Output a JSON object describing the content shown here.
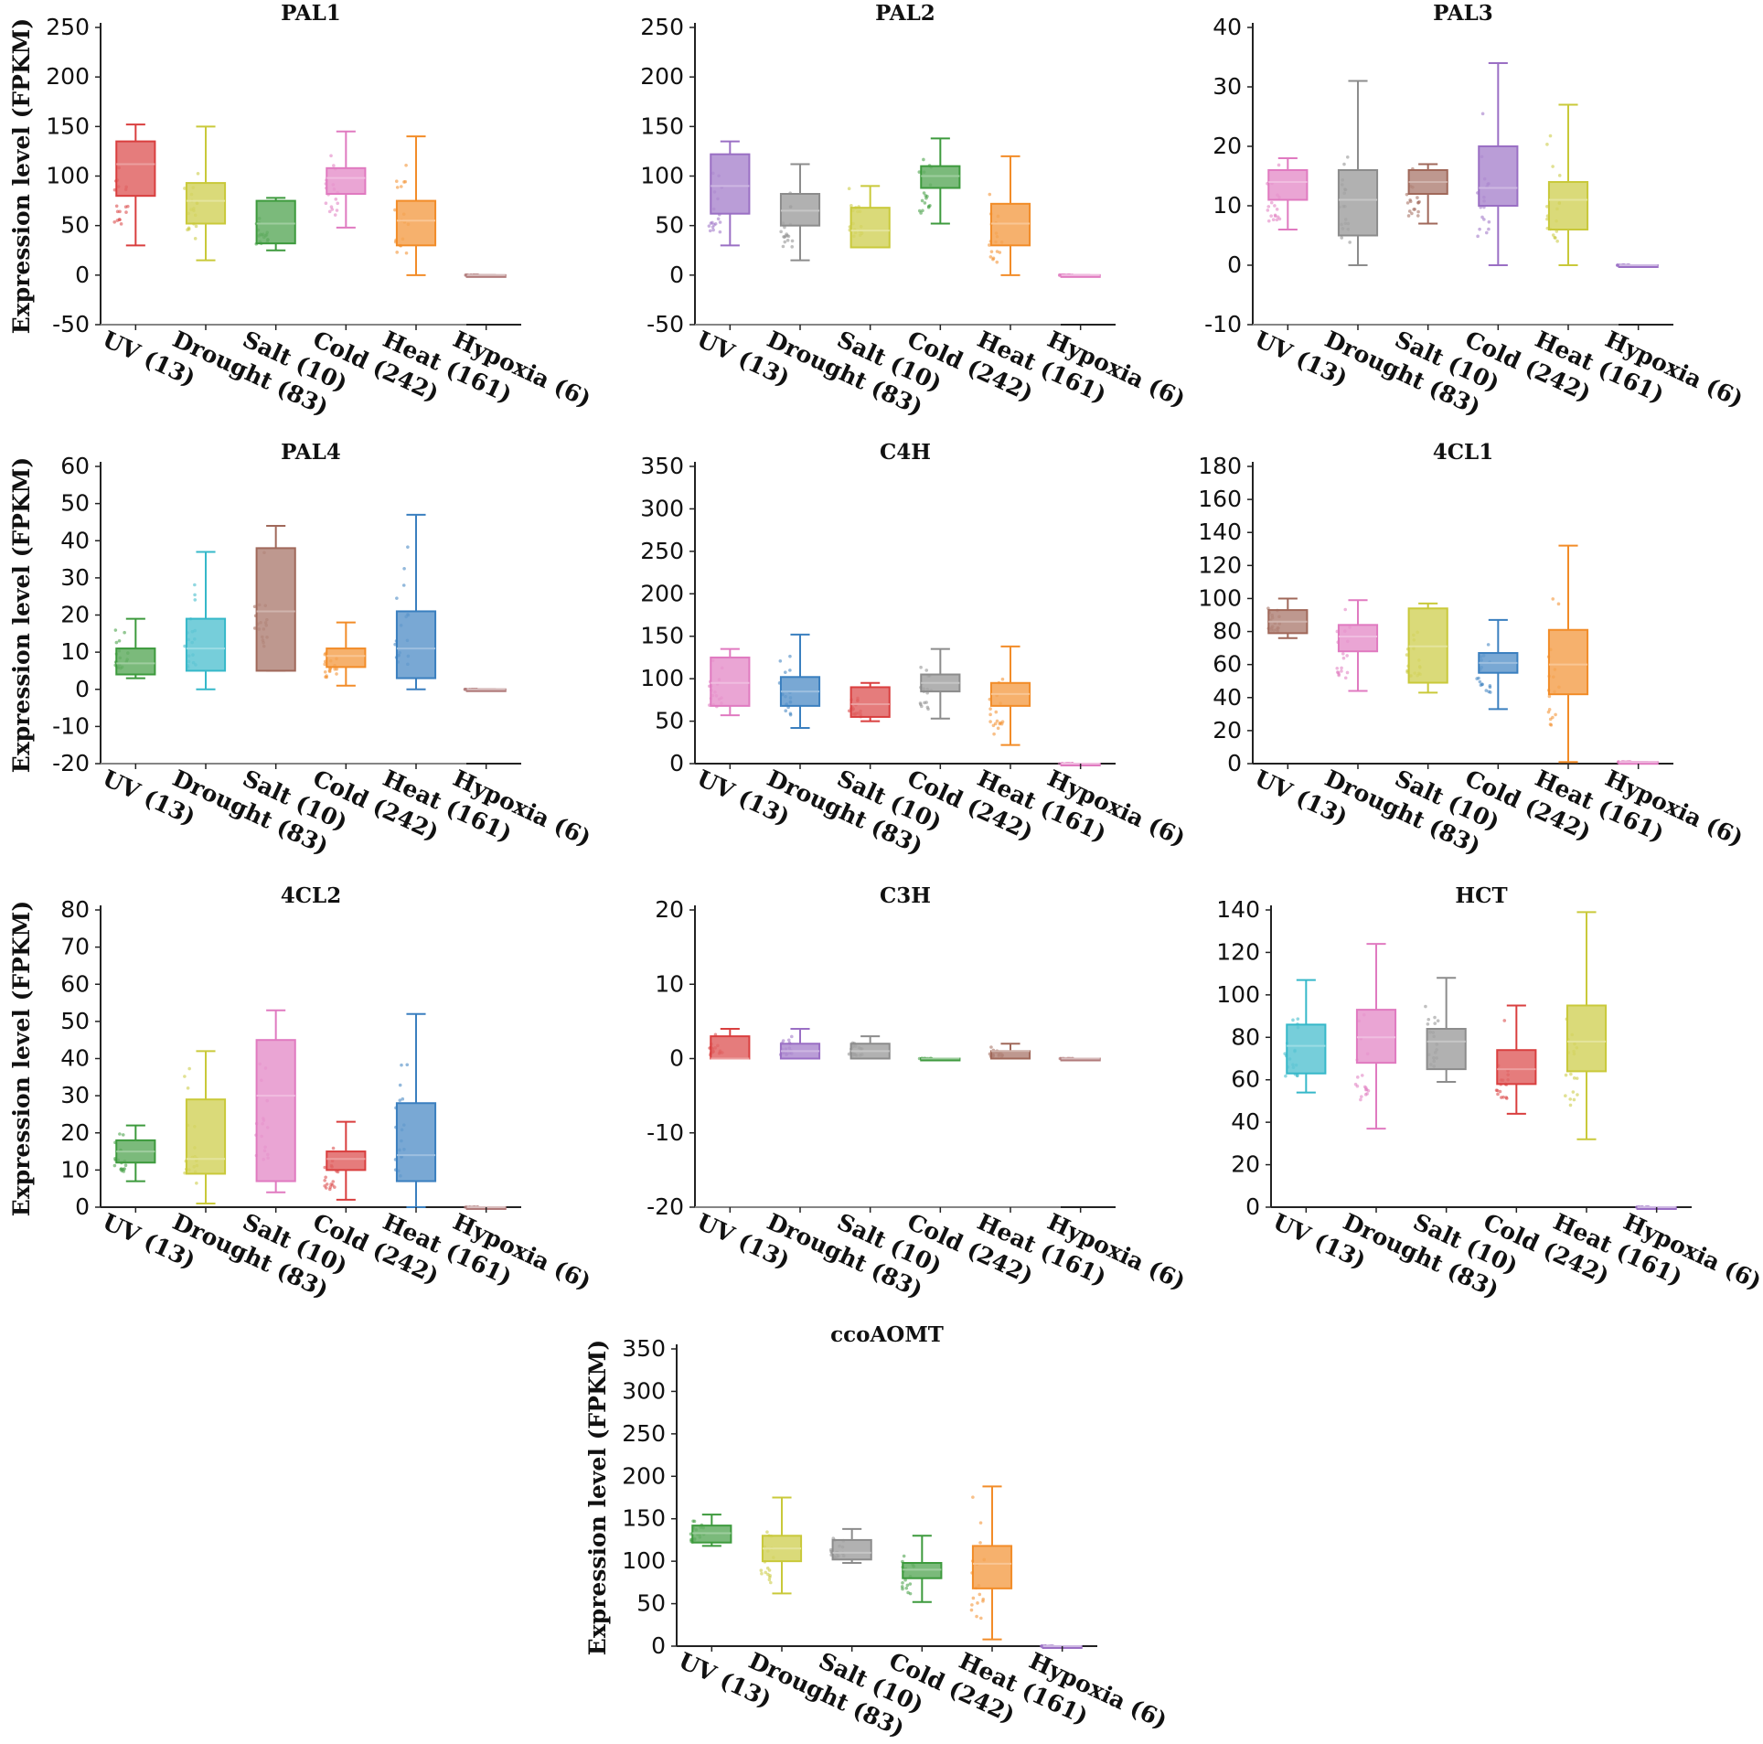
{
  "figure": {
    "y_axis_label": "Expression level (FPKM)",
    "conditions": [
      "UV (13)",
      "Drought (83)",
      "Salt (10)",
      "Cold (242)",
      "Heat (161)",
      "Hypoxia (6)"
    ]
  },
  "chart_data": [
    {
      "type": "box",
      "title": "PAL1",
      "ylabel": "Expression level (FPKM)",
      "ylim": [
        -50,
        250
      ],
      "yticks": [
        -50,
        0,
        50,
        100,
        150,
        200,
        250
      ],
      "categories": [
        "UV (13)",
        "Drought (83)",
        "Salt (10)",
        "Cold (242)",
        "Heat (161)",
        "Hypoxia (6)"
      ],
      "colors": [
        "#d93f3f",
        "#c9c93a",
        "#3d9a3d",
        "#e07ac0",
        "#f28c28",
        "#b07a7a"
      ],
      "boxes": [
        {
          "min": 30,
          "q1": 80,
          "median": 112,
          "q3": 135,
          "max": 152
        },
        {
          "min": 15,
          "q1": 52,
          "median": 75,
          "q3": 93,
          "max": 150
        },
        {
          "min": 25,
          "q1": 32,
          "median": 52,
          "q3": 75,
          "max": 78
        },
        {
          "min": 48,
          "q1": 82,
          "median": 98,
          "q3": 108,
          "max": 145
        },
        {
          "min": 0,
          "q1": 30,
          "median": 55,
          "q3": 75,
          "max": 140
        },
        {
          "min": 0,
          "q1": 0,
          "median": 0,
          "q3": 0,
          "max": 0
        }
      ]
    },
    {
      "type": "box",
      "title": "PAL2",
      "ylabel": "",
      "ylim": [
        -50,
        250
      ],
      "yticks": [
        -50,
        0,
        50,
        100,
        150,
        200,
        250
      ],
      "categories": [
        "UV (13)",
        "Drought (83)",
        "Salt (10)",
        "Cold (242)",
        "Heat (161)",
        "Hypoxia (6)"
      ],
      "colors": [
        "#9a6fc4",
        "#8c8c8c",
        "#c9c93a",
        "#3d9a3d",
        "#f28c28",
        "#e07ac0"
      ],
      "boxes": [
        {
          "min": 30,
          "q1": 62,
          "median": 90,
          "q3": 122,
          "max": 135
        },
        {
          "min": 15,
          "q1": 50,
          "median": 65,
          "q3": 82,
          "max": 112
        },
        {
          "min": 28,
          "q1": 28,
          "median": 45,
          "q3": 68,
          "max": 90
        },
        {
          "min": 52,
          "q1": 88,
          "median": 100,
          "q3": 110,
          "max": 138
        },
        {
          "min": 0,
          "q1": 30,
          "median": 52,
          "q3": 72,
          "max": 120
        },
        {
          "min": 0,
          "q1": 0,
          "median": 0,
          "q3": 0,
          "max": 0
        }
      ]
    },
    {
      "type": "box",
      "title": "PAL3",
      "ylabel": "",
      "ylim": [
        -10,
        40
      ],
      "yticks": [
        -10,
        0,
        10,
        20,
        30,
        40
      ],
      "categories": [
        "UV (13)",
        "Drought (83)",
        "Salt (10)",
        "Cold (242)",
        "Heat (161)",
        "Hypoxia (6)"
      ],
      "colors": [
        "#e07ac0",
        "#8c8c8c",
        "#a0685a",
        "#9a6fc4",
        "#c9c93a",
        "#9a6fc4"
      ],
      "boxes": [
        {
          "min": 6,
          "q1": 11,
          "median": 14,
          "q3": 16,
          "max": 18
        },
        {
          "min": 0,
          "q1": 5,
          "median": 11,
          "q3": 16,
          "max": 31
        },
        {
          "min": 7,
          "q1": 12,
          "median": 14,
          "q3": 16,
          "max": 17
        },
        {
          "min": 0,
          "q1": 10,
          "median": 13,
          "q3": 20,
          "max": 34
        },
        {
          "min": 0,
          "q1": 6,
          "median": 11,
          "q3": 14,
          "max": 27
        },
        {
          "min": 0,
          "q1": 0,
          "median": 0,
          "q3": 0,
          "max": 0
        }
      ]
    },
    {
      "type": "box",
      "title": "PAL4",
      "ylabel": "Expression level (FPKM)",
      "ylim": [
        -20,
        60
      ],
      "yticks": [
        -20,
        -10,
        0,
        10,
        20,
        30,
        40,
        50,
        60
      ],
      "categories": [
        "UV (13)",
        "Drought (83)",
        "Salt (10)",
        "Cold (242)",
        "Heat (161)",
        "Hypoxia (6)"
      ],
      "colors": [
        "#3d9a3d",
        "#36b8c9",
        "#a0685a",
        "#f28c28",
        "#3a7fbf",
        "#b07a7a"
      ],
      "boxes": [
        {
          "min": 3,
          "q1": 4,
          "median": 7,
          "q3": 11,
          "max": 19
        },
        {
          "min": 0,
          "q1": 5,
          "median": 11,
          "q3": 19,
          "max": 37
        },
        {
          "min": 5,
          "q1": 5,
          "median": 21,
          "q3": 38,
          "max": 44
        },
        {
          "min": 1,
          "q1": 6,
          "median": 9,
          "q3": 11,
          "max": 18
        },
        {
          "min": 0,
          "q1": 3,
          "median": 11,
          "q3": 21,
          "max": 47
        },
        {
          "min": 0,
          "q1": 0,
          "median": 0,
          "q3": 0,
          "max": 0
        }
      ]
    },
    {
      "type": "box",
      "title": "C4H",
      "ylabel": "",
      "ylim": [
        0,
        350
      ],
      "yticks": [
        0,
        50,
        100,
        150,
        200,
        250,
        300,
        350
      ],
      "categories": [
        "UV (13)",
        "Drought (83)",
        "Salt (10)",
        "Cold (242)",
        "Heat (161)",
        "Hypoxia (6)"
      ],
      "colors": [
        "#e07ac0",
        "#3a7fbf",
        "#d93f3f",
        "#8c8c8c",
        "#f28c28",
        "#e07ac0"
      ],
      "boxes": [
        {
          "min": 57,
          "q1": 68,
          "median": 95,
          "q3": 125,
          "max": 135
        },
        {
          "min": 42,
          "q1": 68,
          "median": 85,
          "q3": 102,
          "max": 152
        },
        {
          "min": 50,
          "q1": 55,
          "median": 70,
          "q3": 90,
          "max": 95
        },
        {
          "min": 53,
          "q1": 85,
          "median": 95,
          "q3": 105,
          "max": 135
        },
        {
          "min": 22,
          "q1": 68,
          "median": 82,
          "q3": 95,
          "max": 138
        },
        {
          "min": 0,
          "q1": 0,
          "median": 0,
          "q3": 0,
          "max": 0
        }
      ]
    },
    {
      "type": "box",
      "title": "4CL1",
      "ylabel": "",
      "ylim": [
        0,
        180
      ],
      "yticks": [
        0,
        20,
        40,
        60,
        80,
        100,
        120,
        140,
        160,
        180
      ],
      "categories": [
        "UV (13)",
        "Drought (83)",
        "Salt (10)",
        "Cold (242)",
        "Heat (161)",
        "Hypoxia (6)"
      ],
      "colors": [
        "#a0685a",
        "#e07ac0",
        "#c9c93a",
        "#3a7fbf",
        "#f28c28",
        "#e07ac0"
      ],
      "boxes": [
        {
          "min": 76,
          "q1": 79,
          "median": 86,
          "q3": 93,
          "max": 100
        },
        {
          "min": 44,
          "q1": 68,
          "median": 77,
          "q3": 84,
          "max": 99
        },
        {
          "min": 43,
          "q1": 49,
          "median": 71,
          "q3": 94,
          "max": 97
        },
        {
          "min": 33,
          "q1": 55,
          "median": 61,
          "q3": 67,
          "max": 87
        },
        {
          "min": 1,
          "q1": 42,
          "median": 60,
          "q3": 81,
          "max": 132
        },
        {
          "min": 1,
          "q1": 1,
          "median": 1,
          "q3": 1,
          "max": 1
        }
      ]
    },
    {
      "type": "box",
      "title": "4CL2",
      "ylabel": "Expression level (FPKM)",
      "ylim": [
        0,
        80
      ],
      "yticks": [
        0,
        10,
        20,
        30,
        40,
        50,
        60,
        70,
        80
      ],
      "categories": [
        "UV (13)",
        "Drought (83)",
        "Salt (10)",
        "Cold (242)",
        "Heat (161)",
        "Hypoxia (6)"
      ],
      "colors": [
        "#3d9a3d",
        "#c9c93a",
        "#e07ac0",
        "#d93f3f",
        "#3a7fbf",
        "#b07a7a"
      ],
      "boxes": [
        {
          "min": 7,
          "q1": 12,
          "median": 15,
          "q3": 18,
          "max": 22
        },
        {
          "min": 1,
          "q1": 9,
          "median": 13,
          "q3": 29,
          "max": 42
        },
        {
          "min": 4,
          "q1": 7,
          "median": 30,
          "q3": 45,
          "max": 53
        },
        {
          "min": 2,
          "q1": 10,
          "median": 13,
          "q3": 15,
          "max": 23
        },
        {
          "min": 0,
          "q1": 7,
          "median": 14,
          "q3": 28,
          "max": 52
        },
        {
          "min": 0,
          "q1": 0,
          "median": 0,
          "q3": 0,
          "max": 0
        }
      ]
    },
    {
      "type": "box",
      "title": "C3H",
      "ylabel": "",
      "ylim": [
        -20,
        20
      ],
      "yticks": [
        -20,
        -10,
        0,
        10,
        20
      ],
      "categories": [
        "UV (13)",
        "Drought (83)",
        "Salt (10)",
        "Cold (242)",
        "Heat (161)",
        "Hypoxia (6)"
      ],
      "colors": [
        "#d93f3f",
        "#9a6fc4",
        "#8c8c8c",
        "#3d9a3d",
        "#a0685a",
        "#b07a7a"
      ],
      "boxes": [
        {
          "min": 0,
          "q1": 0,
          "median": 0,
          "q3": 3,
          "max": 4
        },
        {
          "min": 0,
          "q1": 0,
          "median": 1,
          "q3": 2,
          "max": 4
        },
        {
          "min": 0,
          "q1": 0,
          "median": 1,
          "q3": 2,
          "max": 3
        },
        {
          "min": 0,
          "q1": 0,
          "median": 0,
          "q3": 0,
          "max": 0
        },
        {
          "min": 0,
          "q1": 0,
          "median": 1,
          "q3": 1,
          "max": 2
        },
        {
          "min": 0,
          "q1": 0,
          "median": 0,
          "q3": 0,
          "max": 0
        }
      ]
    },
    {
      "type": "box",
      "title": "HCT",
      "ylabel": "",
      "ylim": [
        0,
        140
      ],
      "yticks": [
        0,
        20,
        40,
        60,
        80,
        100,
        120,
        140
      ],
      "categories": [
        "UV (13)",
        "Drought (83)",
        "Salt (10)",
        "Cold (242)",
        "Heat (161)",
        "Hypoxia (6)"
      ],
      "colors": [
        "#36b8c9",
        "#e07ac0",
        "#8c8c8c",
        "#d93f3f",
        "#c9c93a",
        "#9a6fc4"
      ],
      "boxes": [
        {
          "min": 54,
          "q1": 63,
          "median": 76,
          "q3": 86,
          "max": 107
        },
        {
          "min": 37,
          "q1": 68,
          "median": 80,
          "q3": 93,
          "max": 124
        },
        {
          "min": 59,
          "q1": 65,
          "median": 78,
          "q3": 84,
          "max": 108
        },
        {
          "min": 44,
          "q1": 58,
          "median": 65,
          "q3": 74,
          "max": 95
        },
        {
          "min": 32,
          "q1": 64,
          "median": 78,
          "q3": 95,
          "max": 139
        },
        {
          "min": 0,
          "q1": 0,
          "median": 0,
          "q3": 0,
          "max": 0
        }
      ]
    },
    {
      "type": "box",
      "title": "ccoAOMT",
      "ylabel": "Expression level (FPKM)",
      "ylim": [
        0,
        350
      ],
      "yticks": [
        0,
        50,
        100,
        150,
        200,
        250,
        300,
        350
      ],
      "categories": [
        "UV (13)",
        "Drought (83)",
        "Salt (10)",
        "Cold (242)",
        "Heat (161)",
        "Hypoxia (6)"
      ],
      "colors": [
        "#3d9a3d",
        "#c9c93a",
        "#8c8c8c",
        "#3d9a3d",
        "#f28c28",
        "#9a6fc4"
      ],
      "boxes": [
        {
          "min": 118,
          "q1": 122,
          "median": 133,
          "q3": 142,
          "max": 155
        },
        {
          "min": 62,
          "q1": 100,
          "median": 115,
          "q3": 130,
          "max": 175
        },
        {
          "min": 98,
          "q1": 102,
          "median": 110,
          "q3": 125,
          "max": 138
        },
        {
          "min": 52,
          "q1": 80,
          "median": 90,
          "q3": 98,
          "max": 130
        },
        {
          "min": 8,
          "q1": 68,
          "median": 97,
          "q3": 118,
          "max": 188
        },
        {
          "min": 0,
          "q1": 0,
          "median": 0,
          "q3": 0,
          "max": 0
        }
      ]
    }
  ]
}
